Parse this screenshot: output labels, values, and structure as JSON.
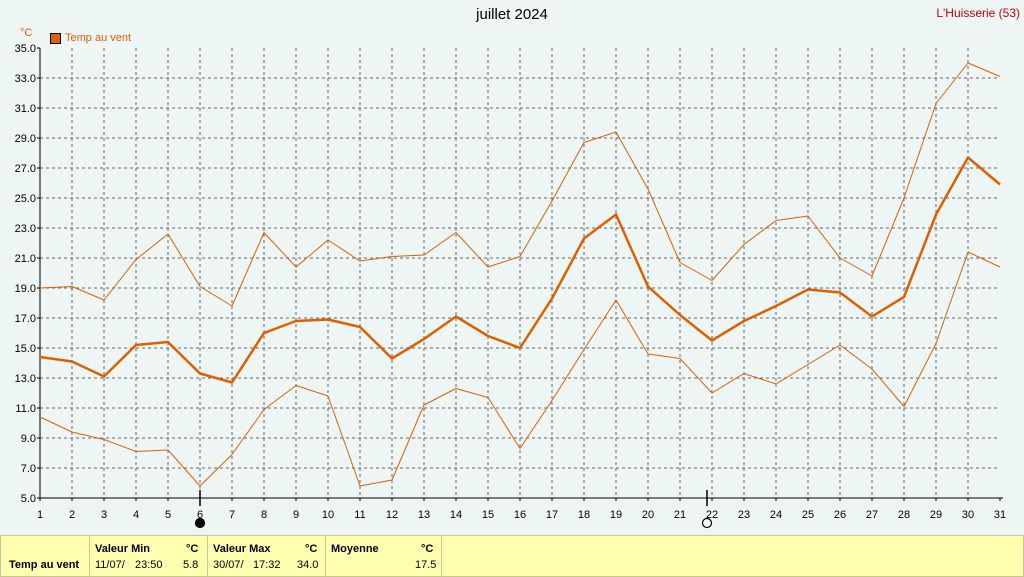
{
  "header": {
    "title": "juillet 2024",
    "location": "L'Huisserie (53)",
    "unit": "°C",
    "legend_label": "Temp au vent"
  },
  "colors": {
    "series": "#e06000",
    "stats_bg": "#ffffb0",
    "location": "#cc0000"
  },
  "chart_data": {
    "type": "line",
    "title": "juillet 2024",
    "ylabel": "°C",
    "x": [
      1,
      2,
      3,
      4,
      5,
      6,
      7,
      8,
      9,
      10,
      11,
      12,
      13,
      14,
      15,
      16,
      17,
      18,
      19,
      20,
      21,
      22,
      23,
      24,
      25,
      26,
      27,
      28,
      29,
      30,
      31
    ],
    "xticks": [
      "1",
      "2",
      "3",
      "4",
      "5",
      "6",
      "7",
      "8",
      "9",
      "10",
      "11",
      "12",
      "13",
      "14",
      "15",
      "16",
      "17",
      "18",
      "19",
      "20",
      "21",
      "22",
      "23",
      "24",
      "25",
      "26",
      "27",
      "28",
      "29",
      "30",
      "31"
    ],
    "ylim": [
      5,
      35
    ],
    "yticks": [
      "5.0",
      "7.0",
      "9.0",
      "11.0",
      "13.0",
      "15.0",
      "17.0",
      "19.0",
      "21.0",
      "23.0",
      "25.0",
      "27.0",
      "29.0",
      "31.0",
      "33.0",
      "35.0"
    ],
    "grid": true,
    "legend_position": "top-left",
    "series": [
      {
        "name": "Temp au vent",
        "role": "mean",
        "values": [
          14.4,
          14.1,
          13.1,
          15.2,
          15.4,
          13.3,
          12.7,
          16.0,
          16.8,
          16.9,
          16.4,
          14.3,
          15.6,
          17.1,
          15.8,
          15.0,
          18.3,
          22.3,
          23.9,
          19.1,
          17.2,
          15.5,
          16.8,
          17.8,
          18.9,
          18.7,
          17.1,
          18.4,
          23.9,
          27.7,
          25.9
        ]
      },
      {
        "role": "max",
        "values": [
          19.0,
          19.1,
          18.2,
          20.9,
          22.6,
          19.1,
          17.8,
          22.7,
          20.4,
          22.2,
          20.8,
          21.1,
          21.2,
          22.7,
          20.4,
          21.1,
          24.8,
          28.7,
          29.4,
          25.6,
          20.7,
          19.5,
          21.9,
          23.5,
          23.8,
          21.0,
          19.8,
          25.0,
          31.3,
          34.0,
          33.1
        ]
      },
      {
        "role": "min",
        "values": [
          10.4,
          9.4,
          8.9,
          8.1,
          8.2,
          5.8,
          7.9,
          10.9,
          12.5,
          11.8,
          5.8,
          6.2,
          11.2,
          12.3,
          11.7,
          8.3,
          11.5,
          14.9,
          18.2,
          14.6,
          14.3,
          12.0,
          13.3,
          12.6,
          13.9,
          15.2,
          13.6,
          11.1,
          15.3,
          21.4,
          20.4
        ]
      }
    ],
    "moon_phases": [
      {
        "day": 6,
        "phase": "new"
      },
      {
        "day": 22,
        "phase": "full"
      }
    ]
  },
  "stats": {
    "row_label": "Temp au vent",
    "min_header": "Valeur Min",
    "min_unit": "°C",
    "min_date": "11/07/",
    "min_time": "23:50",
    "min_value": "5.8",
    "max_header": "Valeur Max",
    "max_unit": "°C",
    "max_date": "30/07/",
    "max_time": "17:32",
    "max_value": "34.0",
    "avg_header": "Moyenne",
    "avg_unit": "°C",
    "avg_value": "17.5"
  }
}
